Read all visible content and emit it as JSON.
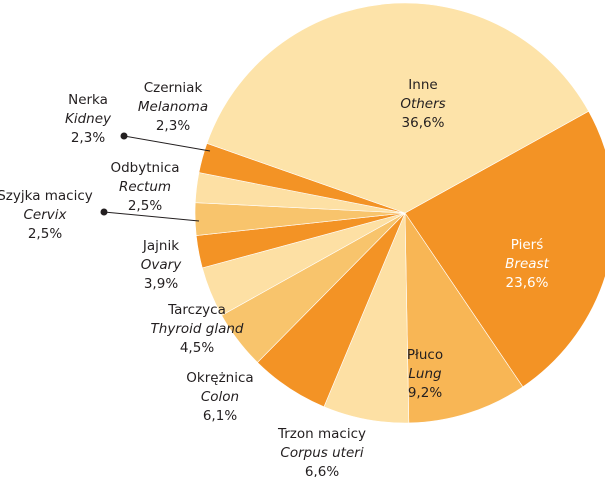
{
  "chart_data": {
    "type": "pie",
    "categories": [
      "Pierś",
      "Płuco",
      "Trzon macicy",
      "Okrężnica",
      "Tarczyca",
      "Jajnik",
      "Szyjka macicy",
      "Odbytnica",
      "Nerka",
      "Czerniak",
      "Inne"
    ],
    "english": [
      "Breast",
      "Lung",
      "Corpus uteri",
      "Colon",
      "Thyroid gland",
      "Ovary",
      "Cervix",
      "Rectum",
      "Kidney",
      "Melanoma",
      "Others"
    ],
    "values": [
      23.6,
      9.2,
      6.6,
      6.1,
      4.5,
      3.9,
      2.5,
      2.5,
      2.3,
      2.3,
      36.6
    ],
    "value_labels": [
      "23,6%",
      "9,2%",
      "6,6%",
      "6,1%",
      "4,5%",
      "3,9%",
      "2,5%",
      "2,5%",
      "2,3%",
      "2,3%",
      "36,6%"
    ],
    "colors": [
      "#f39325",
      "#f8b655",
      "#fde0a4",
      "#f39325",
      "#f8c46c",
      "#fde0a4",
      "#f39325",
      "#f8c46c",
      "#fde0a4",
      "#f39325",
      "#fde3a9"
    ]
  }
}
